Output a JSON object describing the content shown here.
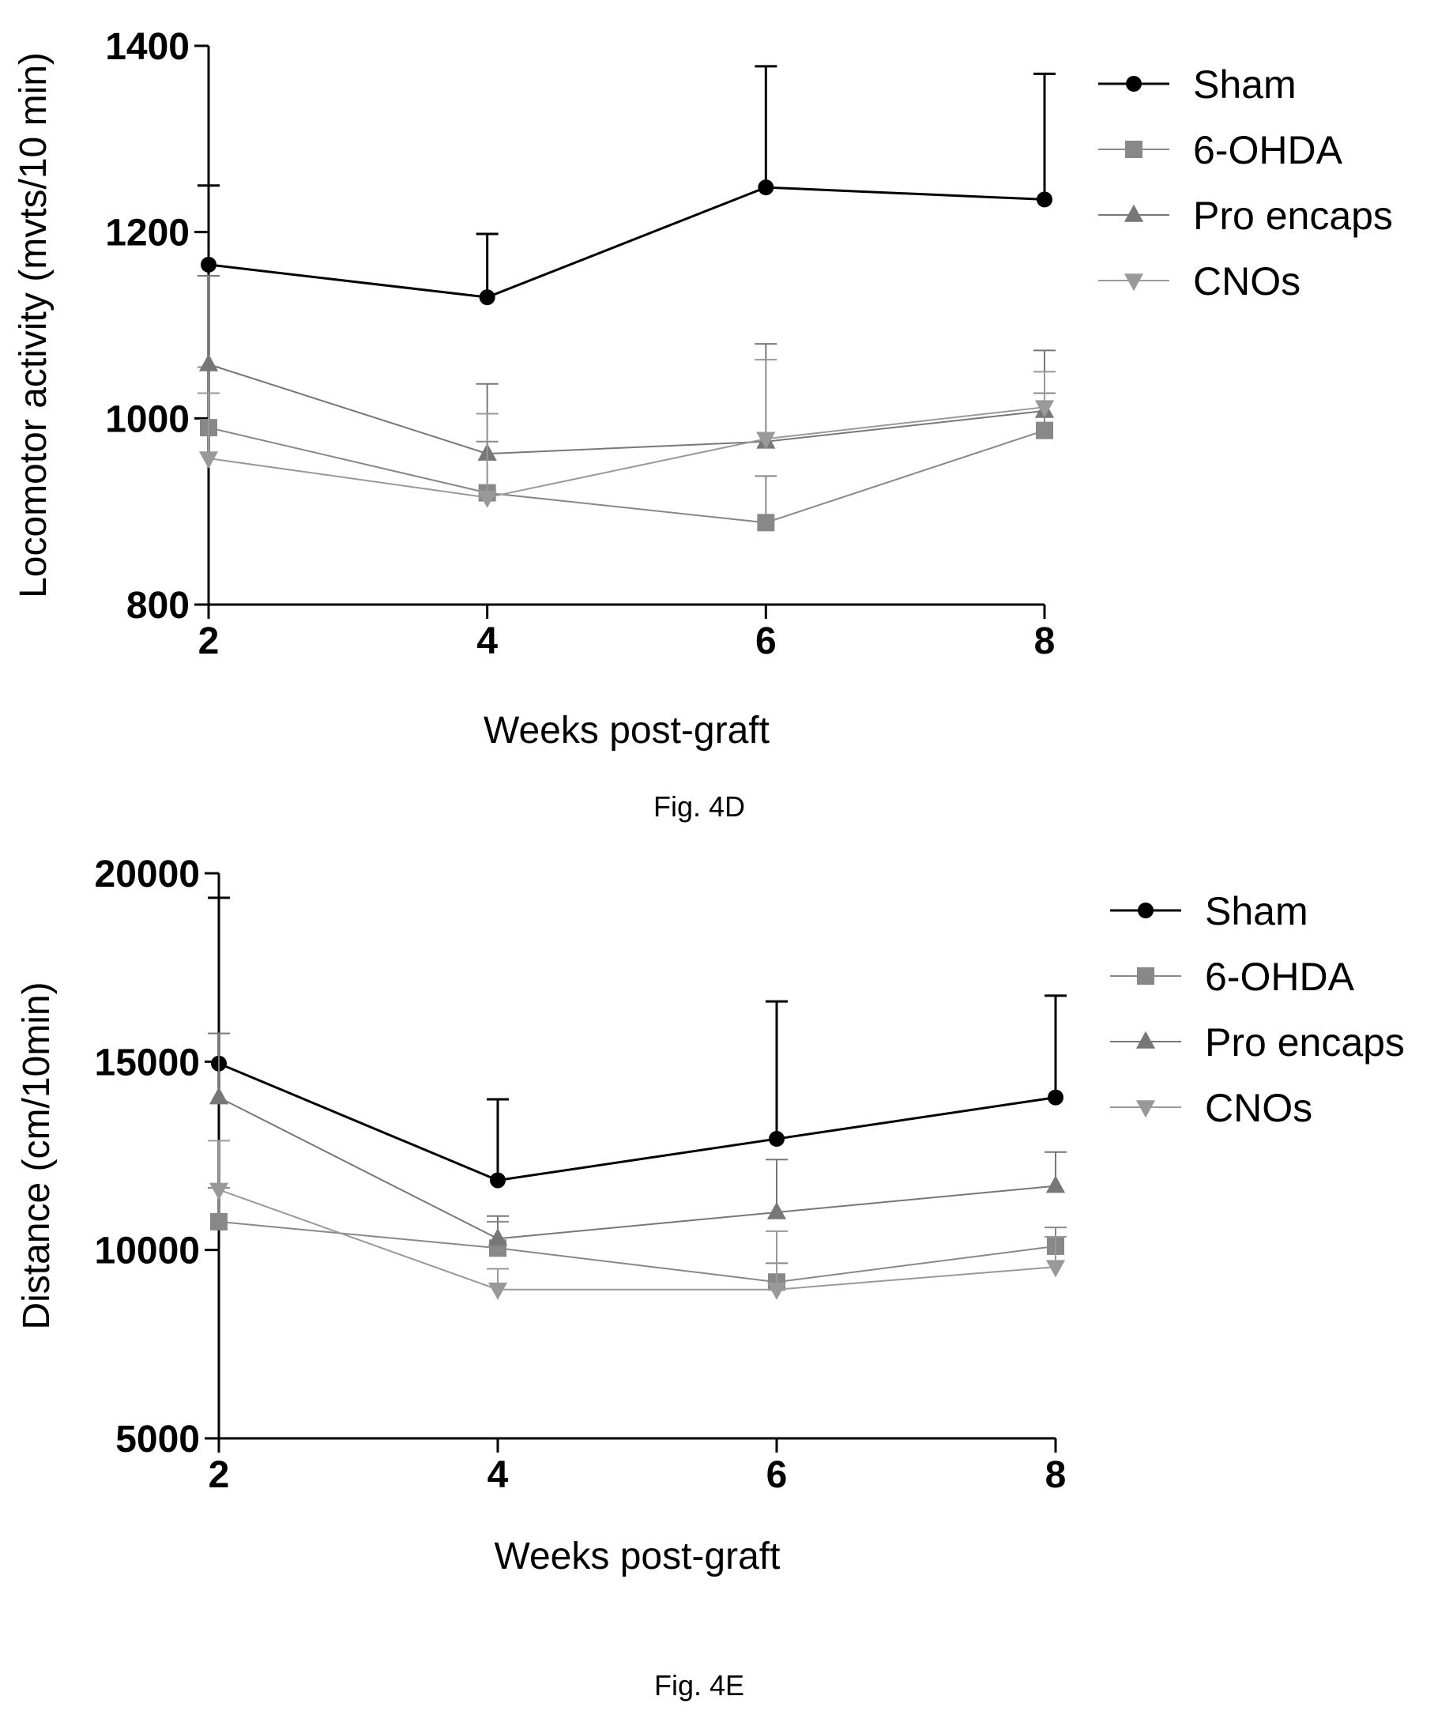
{
  "chart_data": [
    {
      "type": "line",
      "caption": "Fig. 4D",
      "xlabel": "Weeks post-graft",
      "ylabel": "Locomotor activity (mvts/10 min)",
      "x": [
        2,
        4,
        6,
        8
      ],
      "xticks": [
        "2",
        "4",
        "6",
        "8"
      ],
      "ylim": [
        800,
        1400
      ],
      "yticks": [
        800,
        1000,
        1200,
        1400
      ],
      "legend_position": "top-right",
      "series": [
        {
          "name": "Sham",
          "marker": "circle",
          "color": "#000000",
          "values": [
            1165,
            1130,
            1248,
            1235
          ],
          "errors": [
            85,
            68,
            130,
            135
          ]
        },
        {
          "name": "6-OHDA",
          "marker": "square",
          "color": "#888888",
          "values": [
            990,
            920,
            888,
            987
          ],
          "errors": [
            65,
            55,
            50,
            40
          ]
        },
        {
          "name": "Pro encaps",
          "marker": "triangle-up",
          "color": "#777777",
          "values": [
            1058,
            962,
            975,
            1008
          ],
          "errors": [
            95,
            75,
            105,
            65
          ]
        },
        {
          "name": "CNOs",
          "marker": "triangle-down",
          "color": "#999999",
          "values": [
            957,
            915,
            978,
            1012
          ],
          "errors": [
            70,
            90,
            85,
            38
          ]
        }
      ]
    },
    {
      "type": "line",
      "caption": "Fig. 4E",
      "xlabel": "Weeks post-graft",
      "ylabel": "Distance (cm/10min)",
      "x": [
        2,
        4,
        6,
        8
      ],
      "xticks": [
        "2",
        "4",
        "6",
        "8"
      ],
      "ylim": [
        5000,
        20000
      ],
      "yticks": [
        5000,
        10000,
        15000,
        20000
      ],
      "legend_position": "top-right",
      "series": [
        {
          "name": "Sham",
          "marker": "circle",
          "color": "#000000",
          "values": [
            14950,
            11850,
            12950,
            14050
          ],
          "errors": [
            4400,
            2150,
            3650,
            2700
          ]
        },
        {
          "name": "6-OHDA",
          "marker": "square",
          "color": "#888888",
          "values": [
            10750,
            10050,
            9150,
            10100
          ],
          "errors": [
            900,
            700,
            500,
            500
          ]
        },
        {
          "name": "Pro encaps",
          "marker": "triangle-up",
          "color": "#777777",
          "values": [
            14050,
            10300,
            11000,
            11700
          ],
          "errors": [
            1700,
            600,
            1400,
            900
          ]
        },
        {
          "name": "CNOs",
          "marker": "triangle-down",
          "color": "#999999",
          "values": [
            11600,
            8950,
            8950,
            9550
          ],
          "errors": [
            1300,
            550,
            1550,
            800
          ]
        }
      ]
    }
  ]
}
